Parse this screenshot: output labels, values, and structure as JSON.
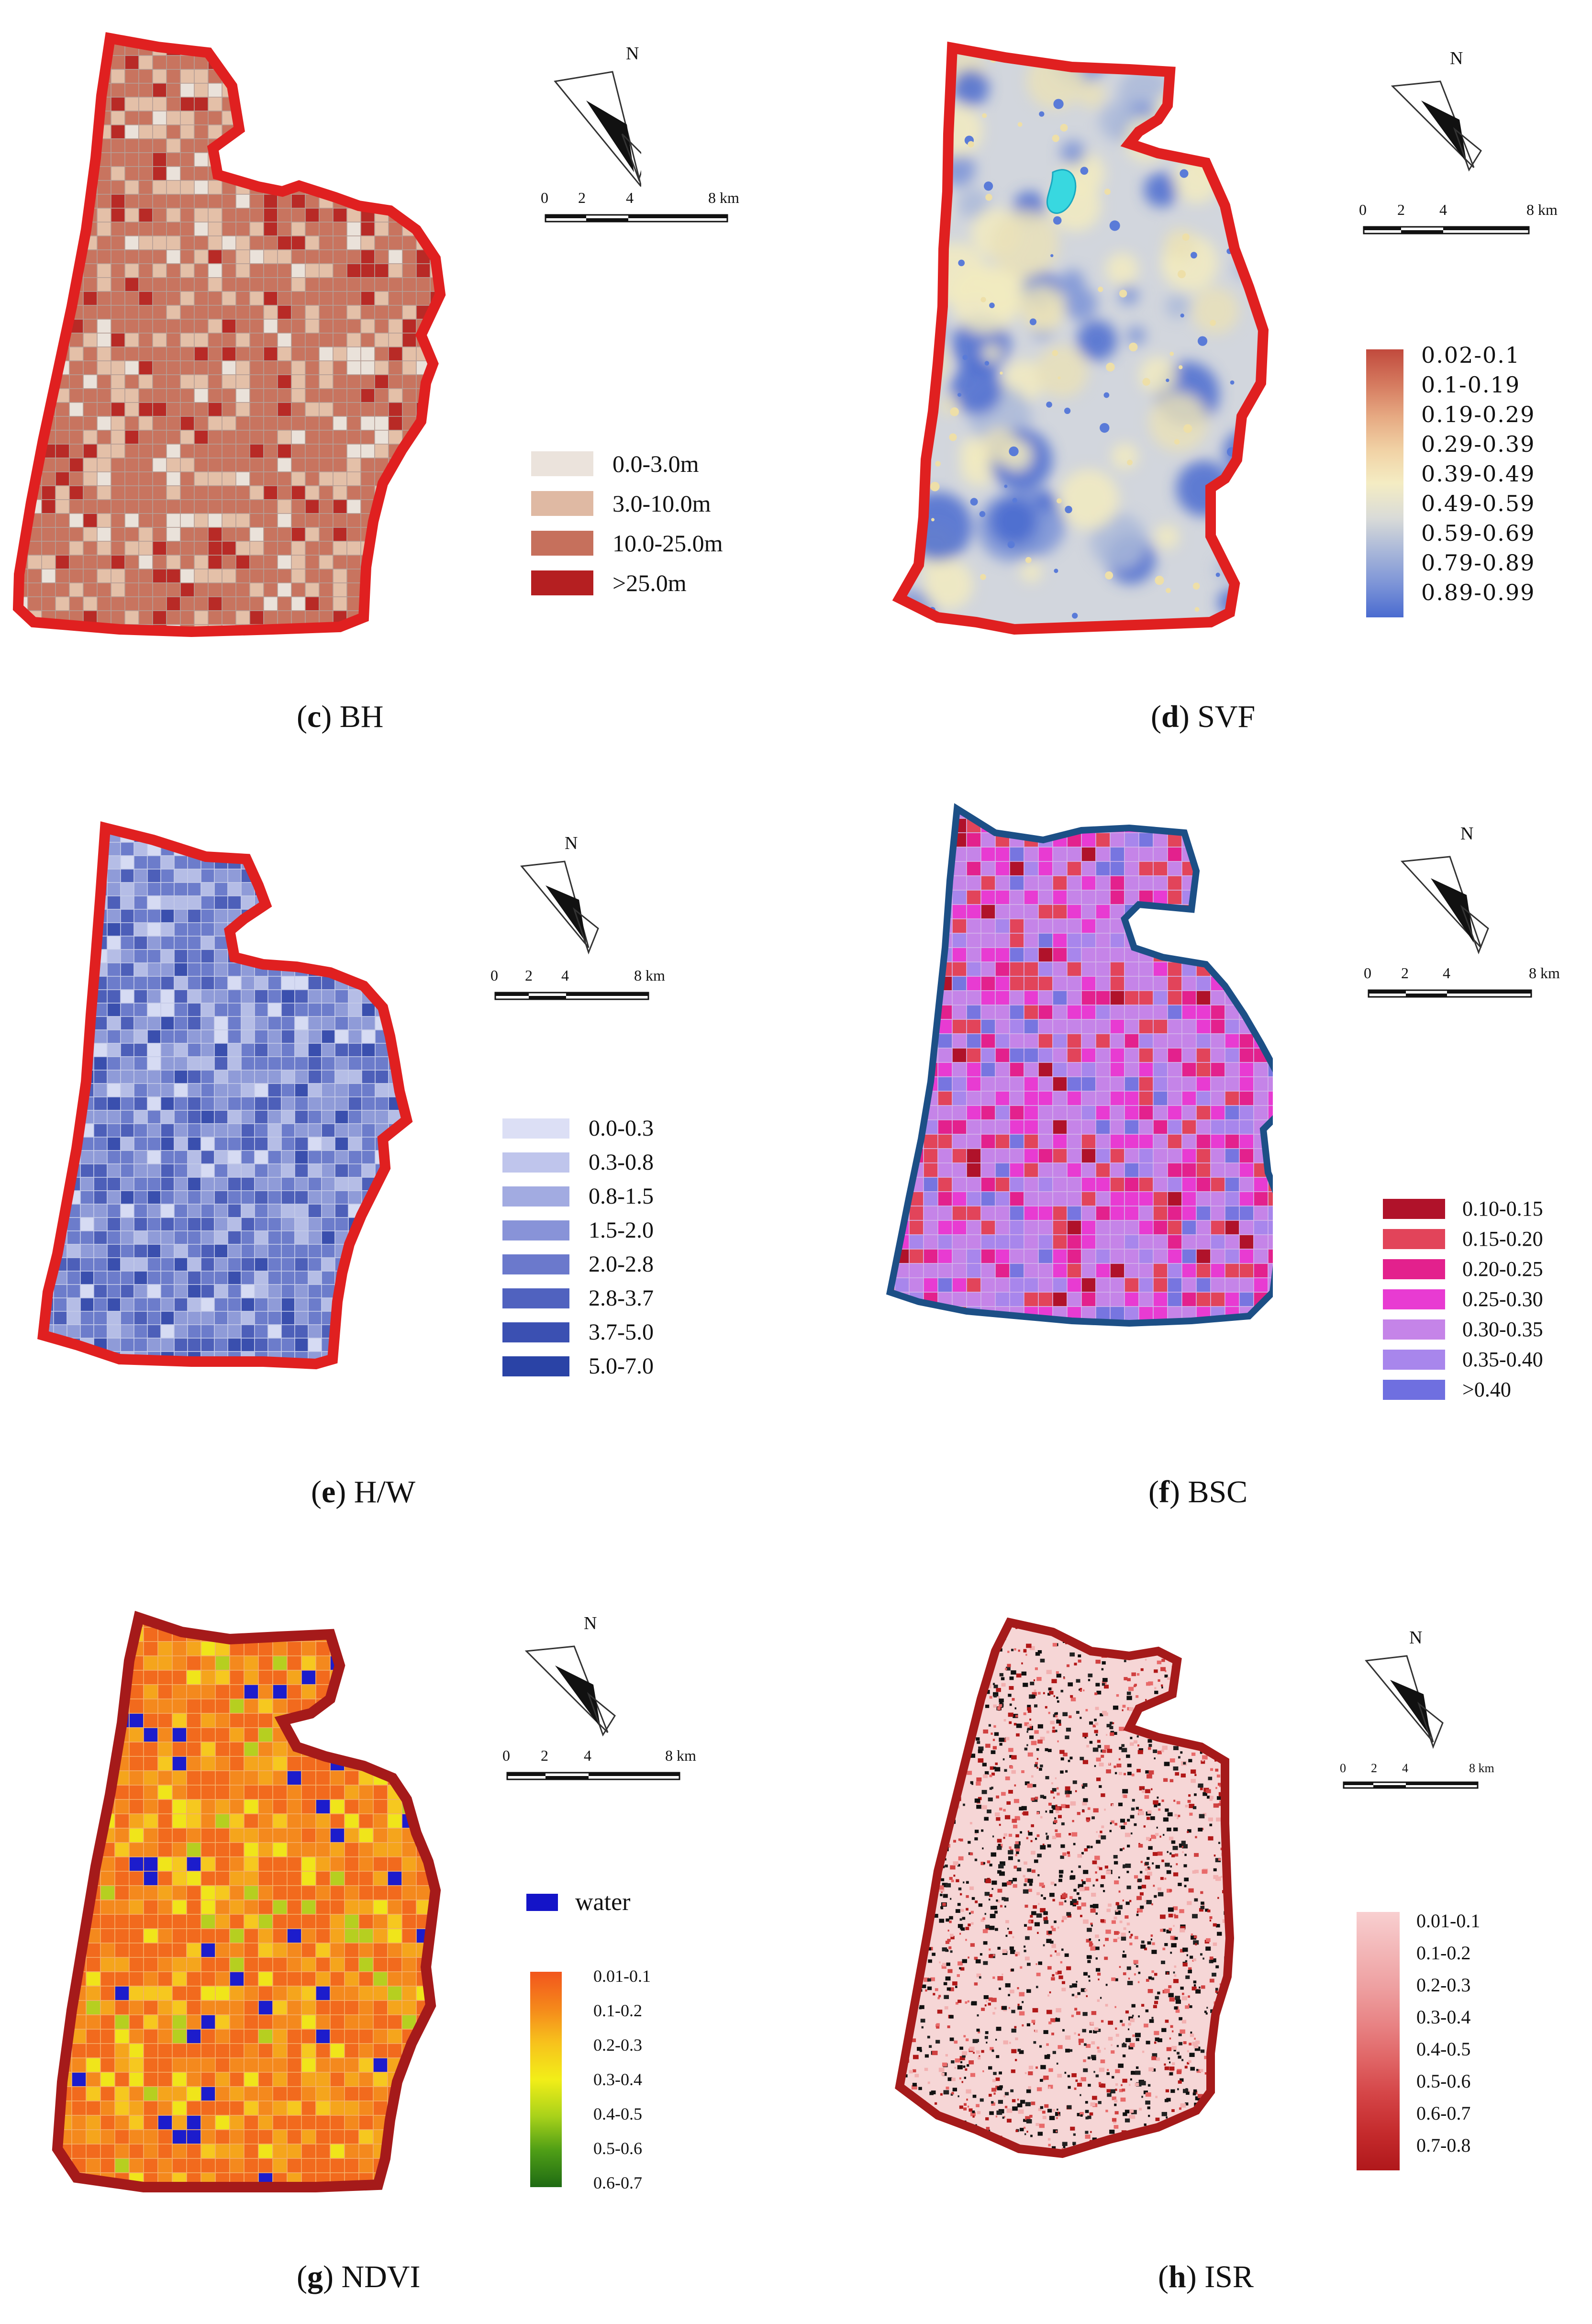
{
  "north_label": "N",
  "scale_labels": {
    "t0": "0",
    "t2": "2",
    "t4": "4",
    "t8": "8 km"
  },
  "panels": {
    "c": {
      "letter": "c",
      "name": "BH",
      "border": "#e02020",
      "palette": [
        "#c8745f",
        "#e4c0a8",
        "#b82a26",
        "#eae2da"
      ],
      "legend": [
        {
          "label": "0.0-3.0m",
          "color": "#ebe3dc"
        },
        {
          "label": "3.0-10.0m",
          "color": "#dfb9a3"
        },
        {
          "label": "10.0-25.0m",
          "color": "#c6705c"
        },
        {
          "label": ">25.0m",
          "color": "#b51f21"
        }
      ]
    },
    "d": {
      "letter": "d",
      "name": "SVF",
      "border": "#e02020",
      "legend": [
        {
          "label": "0.02-0.1",
          "color": "#c14a3d"
        },
        {
          "label": "0.1-0.19",
          "color": "#d57a5f"
        },
        {
          "label": "0.19-0.29",
          "color": "#e6a982"
        },
        {
          "label": "0.29-0.39",
          "color": "#f1d3a6"
        },
        {
          "label": "0.39-0.49",
          "color": "#f4ecc3"
        },
        {
          "label": "0.49-0.59",
          "color": "#d9dbd8"
        },
        {
          "label": "0.59-0.69",
          "color": "#aab8d9"
        },
        {
          "label": "0.79-0.89",
          "color": "#7b93d7"
        },
        {
          "label": "0.89-0.99",
          "color": "#4a6bd0"
        }
      ]
    },
    "e": {
      "letter": "e",
      "name": "H/W",
      "border": "#e02020",
      "palette": [
        "#6c7ccb",
        "#8f9bd8",
        "#4d5fb9",
        "#b5bde6",
        "#3a4fae",
        "#d6dbf3"
      ],
      "legend": [
        {
          "label": "0.0-0.3",
          "color": "#dcdff5"
        },
        {
          "label": "0.3-0.8",
          "color": "#bfc5ec"
        },
        {
          "label": "0.8-1.5",
          "color": "#a2abe1"
        },
        {
          "label": "1.5-2.0",
          "color": "#8893d8"
        },
        {
          "label": "2.0-2.8",
          "color": "#6b79cc"
        },
        {
          "label": "2.8-3.7",
          "color": "#5062bf"
        },
        {
          "label": "3.7-5.0",
          "color": "#3b50b2"
        },
        {
          "label": "5.0-7.0",
          "color": "#2a43a6"
        }
      ]
    },
    "f": {
      "letter": "f",
      "name": "BSC",
      "border": "#1c4f86",
      "palette": [
        "#c584e8",
        "#e83bd2",
        "#e2445a",
        "#a886ec",
        "#e3218d",
        "#b0122a",
        "#7775e0"
      ],
      "legend": [
        {
          "label": "0.10-0.15",
          "color": "#b0122a"
        },
        {
          "label": "0.15-0.20",
          "color": "#e2445a"
        },
        {
          "label": "0.20-0.25",
          "color": "#e3218d"
        },
        {
          "label": "0.25-0.30",
          "color": "#e83bd2"
        },
        {
          "label": "0.30-0.35",
          "color": "#c584e8"
        },
        {
          "label": "0.35-0.40",
          "color": "#a886ec"
        },
        {
          "label": ">0.40",
          "color": "#6f6fe0"
        }
      ]
    },
    "g": {
      "letter": "g",
      "name": "NDVI",
      "border": "#a51a1a",
      "palette": [
        "#f26a1d",
        "#f4891d",
        "#f5a51c",
        "#f6c81f",
        "#f0e51a",
        "#b6cf20",
        "#1c1ccc"
      ],
      "water_label": "water",
      "water_color": "#1414c8",
      "legend": [
        {
          "label": "0.01-0.1",
          "color": "#f2551c"
        },
        {
          "label": "0.1-0.2",
          "color": "#f5881b"
        },
        {
          "label": "0.2-0.3",
          "color": "#f7c21c"
        },
        {
          "label": "0.3-0.4",
          "color": "#f2ee18"
        },
        {
          "label": "0.4-0.5",
          "color": "#a9d21a"
        },
        {
          "label": "0.5-0.6",
          "color": "#4f9e16"
        },
        {
          "label": "0.6-0.7",
          "color": "#1f6b14"
        }
      ]
    },
    "h": {
      "letter": "h",
      "name": "ISR",
      "border": "#a51a1a",
      "legend": [
        {
          "label": "0.01-0.1",
          "color": "#f8cfd0"
        },
        {
          "label": "0.1-0.2",
          "color": "#f3b8b9"
        },
        {
          "label": "0.2-0.3",
          "color": "#eea0a1"
        },
        {
          "label": "0.3-0.4",
          "color": "#e88485"
        },
        {
          "label": "0.4-0.5",
          "color": "#e06566"
        },
        {
          "label": "0.5-0.6",
          "color": "#d44446"
        },
        {
          "label": "0.6-0.7",
          "color": "#c42a2c"
        },
        {
          "label": "0.7-0.8",
          "color": "#b0181b"
        }
      ]
    }
  }
}
